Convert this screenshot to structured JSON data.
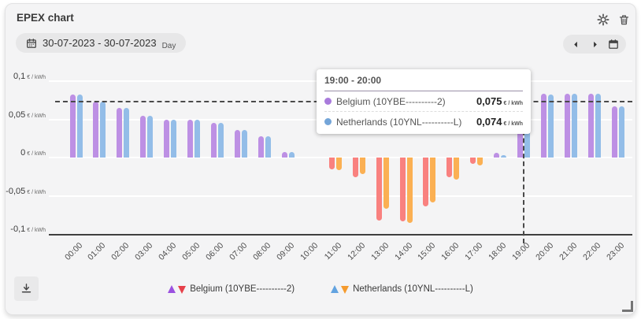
{
  "header": {
    "title": "EPEX chart"
  },
  "toolbar": {
    "date_range": "30-07-2023 - 30-07-2023",
    "granularity": "Day"
  },
  "y_axis": {
    "unit": "€ / kWh",
    "labels": [
      {
        "text": "0,1",
        "value": 0.1
      },
      {
        "text": "0,05",
        "value": 0.05
      },
      {
        "text": "0",
        "value": 0
      },
      {
        "text": "-0,05",
        "value": -0.05
      },
      {
        "text": "-0,1",
        "value": -0.1
      }
    ]
  },
  "tooltip": {
    "title": "19:00 - 20:00",
    "rows": [
      {
        "name": "Belgium (10YBE----------2)",
        "value": "0,075",
        "unit": "€ / kWh",
        "dot_color": "#a97bdc"
      },
      {
        "name": "Netherlands (10YNL----------L)",
        "value": "0,074",
        "unit": "€ / kWh",
        "dot_color": "#74a5d8"
      }
    ]
  },
  "legend": {
    "items": [
      {
        "label": "Belgium (10YBE----------2)",
        "up_color": "#9b51e0",
        "down_color": "#e6404a"
      },
      {
        "label": "Netherlands (10YNL----------L)",
        "up_color": "#62a3e0",
        "down_color": "#f59b2e"
      }
    ]
  },
  "chart_data": {
    "type": "bar",
    "title": "EPEX chart",
    "xlabel": "",
    "ylabel": "€/kWh",
    "ylim": [
      -0.1,
      0.1
    ],
    "grid_values": [
      0.1,
      0.05,
      0,
      -0.05
    ],
    "reference_line_value": 0.073,
    "selected_index": 19,
    "selected_range_label": "19:00 - 20:00",
    "categories": [
      "00:00",
      "01:00",
      "02:00",
      "03:00",
      "04:00",
      "05:00",
      "06:00",
      "07:00",
      "08:00",
      "09:00",
      "10:00",
      "11:00",
      "12:00",
      "13:00",
      "14:00",
      "15:00",
      "16:00",
      "17:00",
      "18:00",
      "19:00",
      "20:00",
      "21:00",
      "22:00",
      "23:00"
    ],
    "series": [
      {
        "name": "Belgium (10YBE----------2)",
        "short": "belgium",
        "color_positive": "#bd90e4",
        "color_negative": "#f9817f",
        "values": [
          0.082,
          0.073,
          0.065,
          0.055,
          0.05,
          0.05,
          0.045,
          0.036,
          0.028,
          0.007,
          0,
          -0.015,
          -0.026,
          -0.082,
          -0.083,
          -0.064,
          -0.026,
          -0.008,
          0.006,
          0.075,
          0.083,
          0.084,
          0.084,
          0.067
        ]
      },
      {
        "name": "Netherlands (10YNL----------L)",
        "short": "netherlands",
        "color_positive": "#93bde8",
        "color_negative": "#fbb053",
        "values": [
          0.082,
          0.073,
          0.065,
          0.055,
          0.05,
          0.05,
          0.045,
          0.036,
          0.028,
          0.007,
          0,
          -0.017,
          -0.022,
          -0.067,
          -0.086,
          -0.059,
          -0.029,
          -0.01,
          0.003,
          0.074,
          0.082,
          0.084,
          0.084,
          0.067
        ]
      }
    ]
  }
}
